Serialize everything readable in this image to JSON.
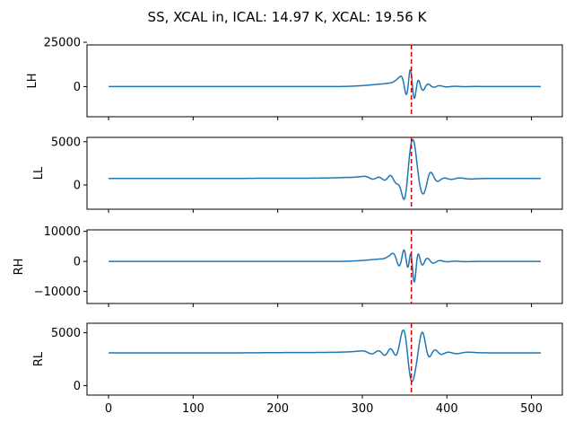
{
  "chart_data": {
    "type": "line",
    "title": "SS, XCAL in, ICAL: 14.97 K, XCAL: 19.56 K",
    "x_range": [
      0,
      511
    ],
    "xlim": [
      -25.5,
      536.5
    ],
    "x_ticks": [
      0,
      100,
      200,
      300,
      400,
      500
    ],
    "marker_x": 358,
    "colors": {
      "line": "#1f77b4",
      "marker": "#cc0000"
    },
    "panels": [
      {
        "ylabel": "LH",
        "ylim": [
          -17000,
          23500
        ],
        "yticks": [
          0,
          25000
        ],
        "baseline": 0,
        "wiggles": [
          [
            288,
            90,
            10
          ],
          [
            296,
            150,
            9
          ],
          [
            304,
            300,
            8
          ],
          [
            312,
            450,
            7
          ],
          [
            320,
            700,
            6.5
          ],
          [
            328,
            900,
            6
          ],
          [
            335,
            1200,
            5
          ],
          [
            342,
            2800,
            4
          ],
          [
            348,
            5500,
            3.5
          ],
          [
            353,
            -10500,
            3
          ],
          [
            357,
            19500,
            2.5
          ],
          [
            361,
            -15000,
            3
          ],
          [
            365,
            9000,
            3
          ],
          [
            371,
            -4000,
            3.5
          ],
          [
            377,
            2800,
            4
          ],
          [
            383,
            -1500,
            4.5
          ],
          [
            390,
            1100,
            5
          ],
          [
            398,
            -600,
            6
          ],
          [
            407,
            400,
            7
          ],
          [
            417,
            -200,
            8
          ],
          [
            428,
            100,
            10
          ]
        ]
      },
      {
        "ylabel": "LL",
        "ylim": [
          -2800,
          5500
        ],
        "yticks": [
          0,
          5000
        ],
        "baseline": 750,
        "wiggles": [
          [
            176,
            20,
            12
          ],
          [
            200,
            25,
            12
          ],
          [
            225,
            30,
            12
          ],
          [
            250,
            40,
            10
          ],
          [
            268,
            60,
            8
          ],
          [
            282,
            100,
            7
          ],
          [
            296,
            150,
            6
          ],
          [
            306,
            250,
            5
          ],
          [
            313,
            -300,
            5
          ],
          [
            320,
            350,
            5
          ],
          [
            327,
            -450,
            4
          ],
          [
            334,
            700,
            4
          ],
          [
            340,
            -900,
            4
          ],
          [
            345,
            650,
            3.5
          ],
          [
            350,
            -3100,
            4
          ],
          [
            355,
            800,
            3
          ],
          [
            360,
            4550,
            4.5
          ],
          [
            367,
            -900,
            3.5
          ],
          [
            373,
            -1800,
            4
          ],
          [
            380,
            1200,
            4
          ],
          [
            388,
            -600,
            5
          ],
          [
            395,
            300,
            6
          ],
          [
            404,
            -250,
            6
          ],
          [
            413,
            150,
            7
          ],
          [
            425,
            -80,
            8
          ]
        ]
      },
      {
        "ylabel": "RH",
        "ylim": [
          -14000,
          10500
        ],
        "yticks": [
          -10000,
          0,
          10000
        ],
        "baseline": 0,
        "wiggles": [
          [
            290,
            100,
            8
          ],
          [
            300,
            150,
            7
          ],
          [
            308,
            300,
            6
          ],
          [
            316,
            400,
            5
          ],
          [
            324,
            600,
            5
          ],
          [
            332,
            1200,
            4
          ],
          [
            338,
            2500,
            3.5
          ],
          [
            344,
            -2800,
            3.5
          ],
          [
            350,
            6000,
            3
          ],
          [
            354,
            -6800,
            2.5
          ],
          [
            358,
            9800,
            2.5
          ],
          [
            361,
            -13600,
            2.5
          ],
          [
            365,
            6000,
            3
          ],
          [
            370,
            -3000,
            3.5
          ],
          [
            376,
            2000,
            4
          ],
          [
            383,
            -1200,
            4.5
          ],
          [
            390,
            700,
            5
          ],
          [
            398,
            -350,
            6
          ],
          [
            407,
            200,
            7
          ],
          [
            418,
            -100,
            8
          ]
        ]
      },
      {
        "ylabel": "RL",
        "ylim": [
          -900,
          5900
        ],
        "yticks": [
          0,
          5000
        ],
        "baseline": 3100,
        "wiggles": [
          [
            190,
            15,
            12
          ],
          [
            215,
            20,
            12
          ],
          [
            240,
            25,
            12
          ],
          [
            262,
            35,
            10
          ],
          [
            280,
            60,
            8
          ],
          [
            294,
            100,
            7
          ],
          [
            304,
            150,
            6
          ],
          [
            312,
            -250,
            5
          ],
          [
            320,
            350,
            5
          ],
          [
            327,
            -500,
            4
          ],
          [
            334,
            700,
            4
          ],
          [
            340,
            -700,
            4
          ],
          [
            346,
            900,
            3.5
          ],
          [
            351,
            2500,
            4
          ],
          [
            357,
            -3100,
            4.5
          ],
          [
            364,
            -600,
            4
          ],
          [
            371,
            2300,
            4
          ],
          [
            378,
            -1000,
            4
          ],
          [
            385,
            600,
            5
          ],
          [
            392,
            -400,
            5
          ],
          [
            400,
            200,
            6
          ],
          [
            410,
            -150,
            7
          ],
          [
            422,
            80,
            8
          ]
        ]
      }
    ]
  }
}
